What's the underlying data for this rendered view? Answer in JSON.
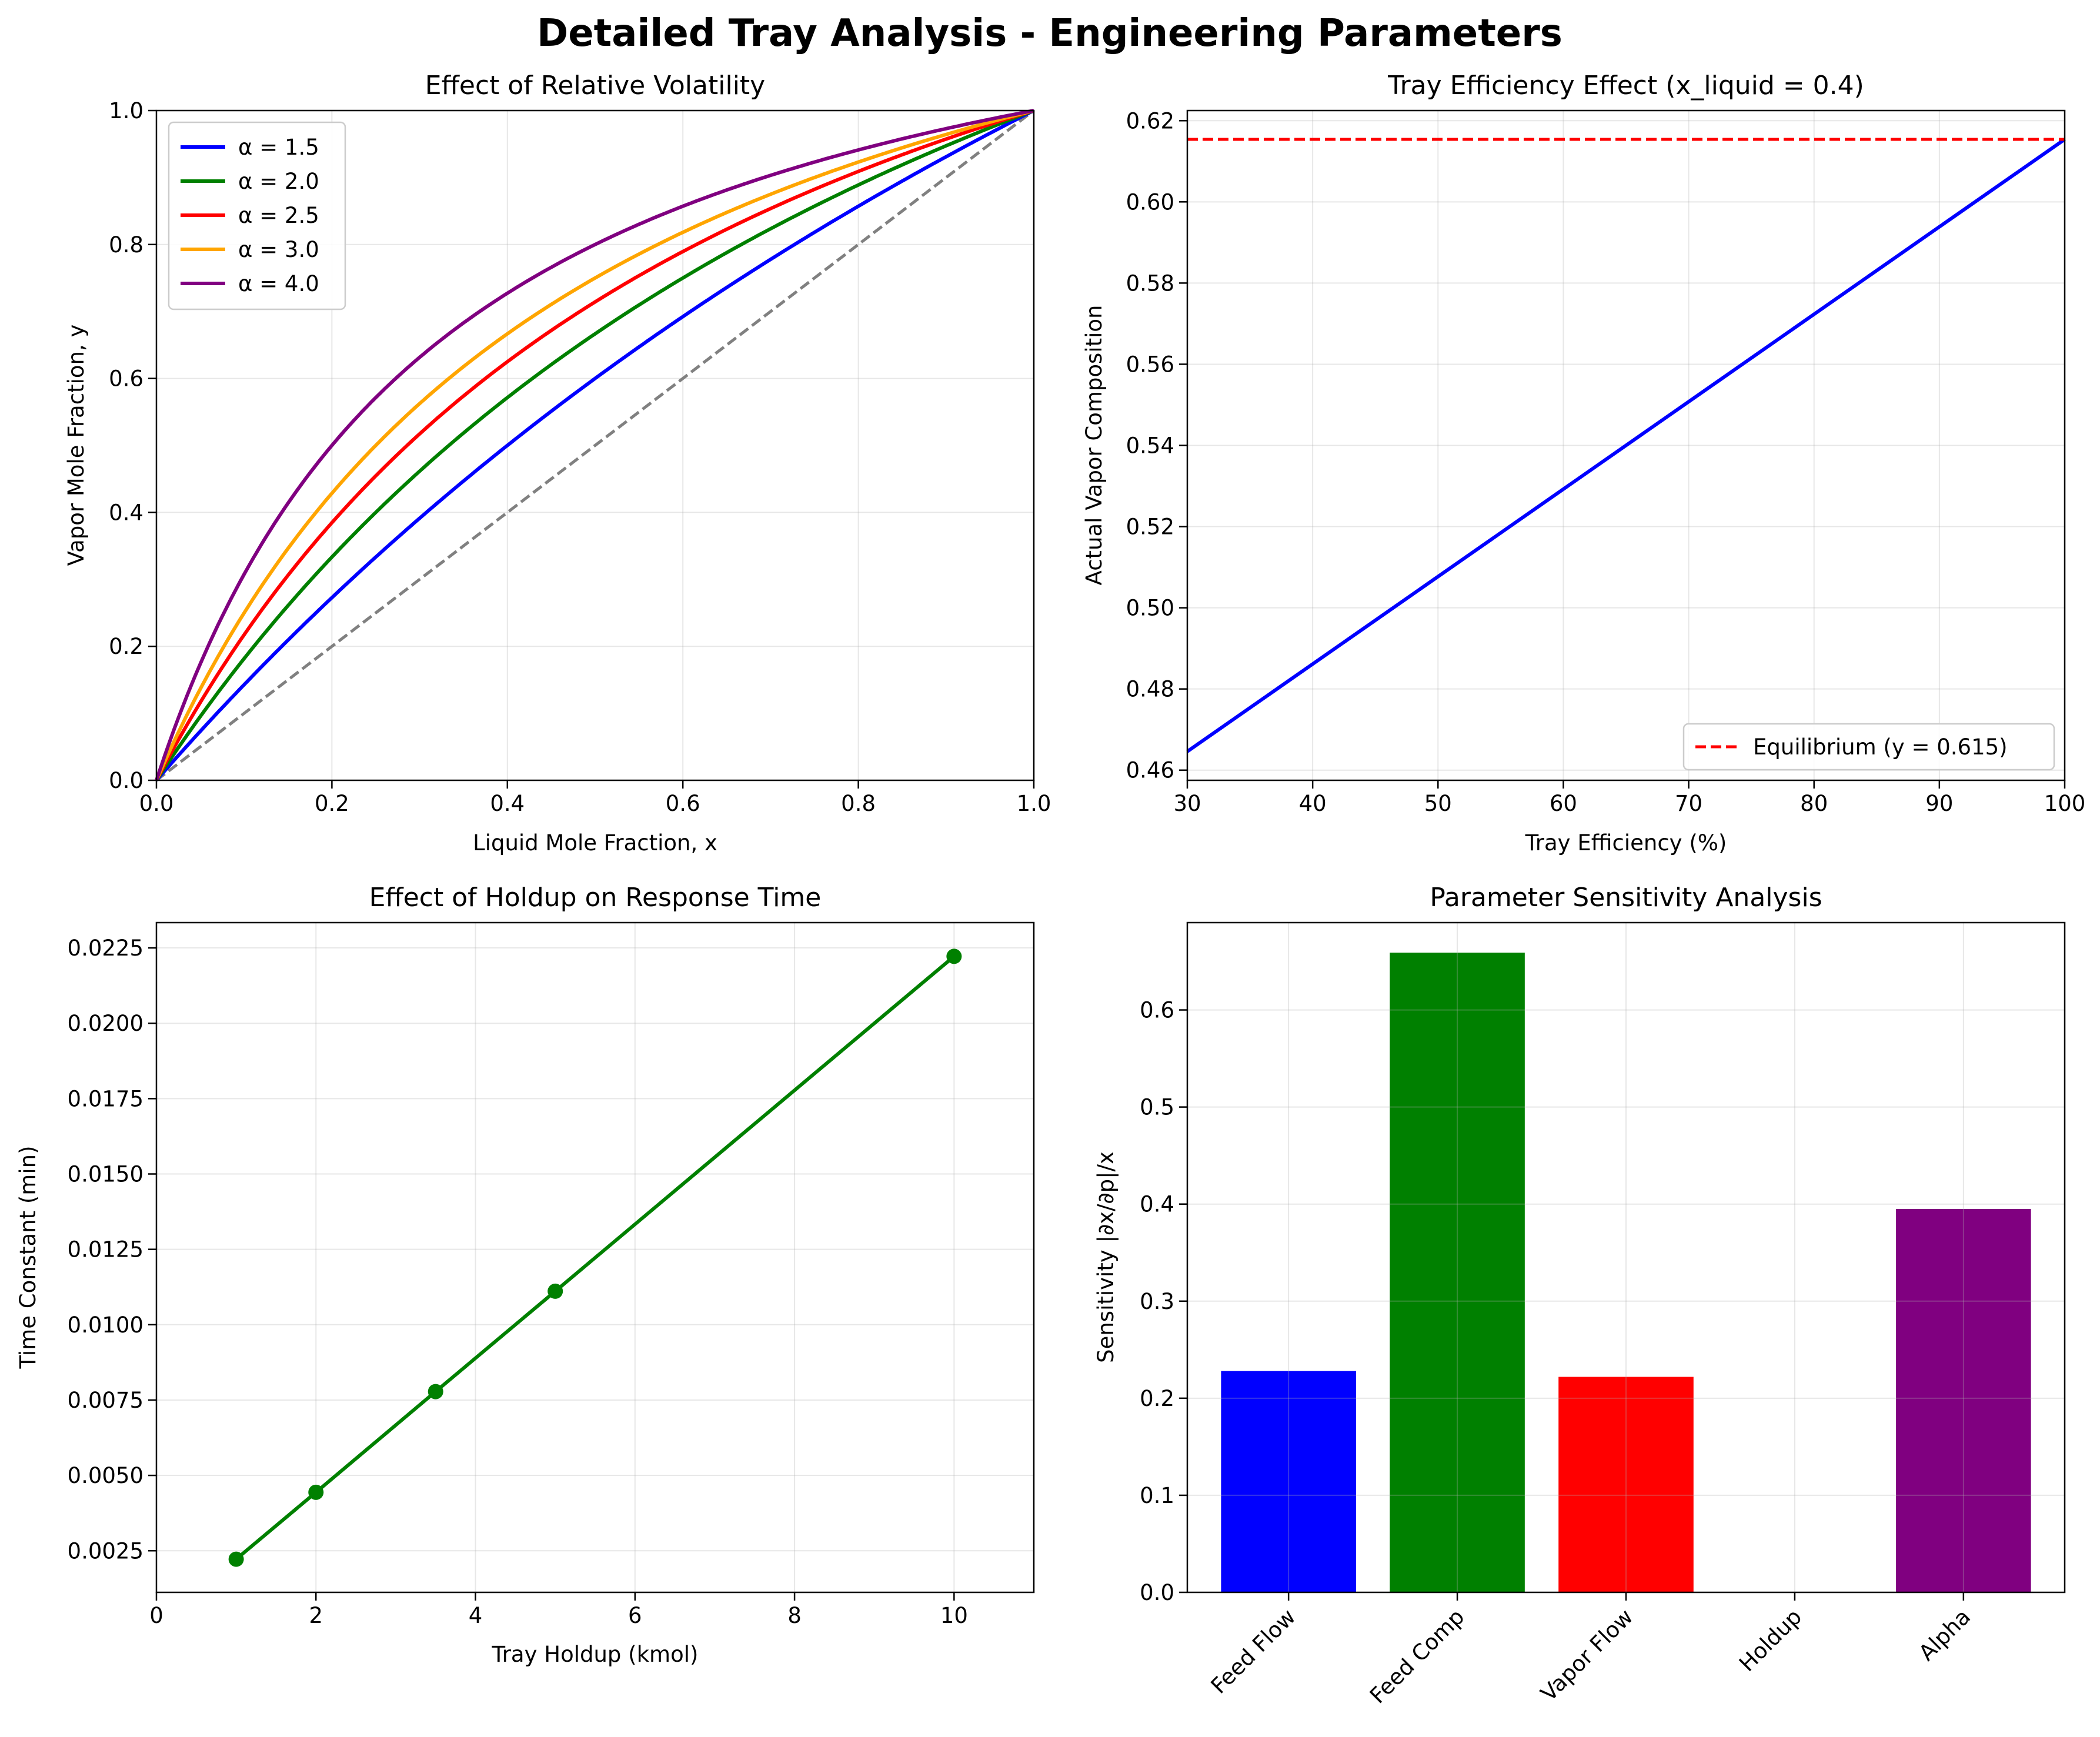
{
  "figure": {
    "title": "Detailed Tray Analysis - Engineering Parameters"
  },
  "chart_data": [
    {
      "type": "line",
      "title": "Effect of Relative Volatility",
      "xlabel": "Liquid Mole Fraction, x",
      "ylabel": "Vapor Mole Fraction, y",
      "xlim": [
        0,
        1
      ],
      "ylim": [
        0,
        1
      ],
      "xticks": [
        "0.0",
        "0.2",
        "0.4",
        "0.6",
        "0.8",
        "1.0"
      ],
      "yticks": [
        "0.0",
        "0.2",
        "0.4",
        "0.6",
        "0.8",
        "1.0"
      ],
      "grid": true,
      "legend_position": "upper-left",
      "equation": "y = alpha*x / (1 + (alpha - 1)*x)",
      "series": [
        {
          "name": "α = 1.5",
          "alpha": 1.5,
          "color": "#0000ff"
        },
        {
          "name": "α = 2.0",
          "alpha": 2.0,
          "color": "#008000"
        },
        {
          "name": "α = 2.5",
          "alpha": 2.5,
          "color": "#ff0000"
        },
        {
          "name": "α = 3.0",
          "alpha": 3.0,
          "color": "#ffa500"
        },
        {
          "name": "α = 4.0",
          "alpha": 4.0,
          "color": "#800080"
        }
      ],
      "diagonal": {
        "x": [
          0,
          1
        ],
        "y": [
          0,
          1
        ],
        "color": "#808080",
        "style": "dashed"
      }
    },
    {
      "type": "line",
      "title": "Tray Efficiency Effect (x_liquid = 0.4)",
      "xlabel": "Tray Efficiency (%)",
      "ylabel": "Actual Vapor Composition",
      "xlim": [
        30,
        100
      ],
      "ylim": [
        0.4575,
        0.6225
      ],
      "xticks": [
        "30",
        "40",
        "50",
        "60",
        "70",
        "80",
        "90",
        "100"
      ],
      "yticks": [
        "0.46",
        "0.48",
        "0.50",
        "0.52",
        "0.54",
        "0.56",
        "0.58",
        "0.60",
        "0.62"
      ],
      "grid": true,
      "legend_position": "lower-right",
      "series": [
        {
          "name": "",
          "x": [
            30,
            100
          ],
          "y": [
            0.4646,
            0.6154
          ],
          "color": "#0000ff"
        }
      ],
      "hline": {
        "name": "Equilibrium (y = 0.615)",
        "y": 0.6154,
        "color": "#ff0000",
        "style": "dashed"
      }
    },
    {
      "type": "line",
      "title": "Effect of Holdup on Response Time",
      "xlabel": "Tray Holdup (kmol)",
      "ylabel": "Time Constant (min)",
      "xlim": [
        0,
        11
      ],
      "ylim": [
        0.00112,
        0.02334
      ],
      "xticks": [
        "0",
        "2",
        "4",
        "6",
        "8",
        "10"
      ],
      "yticks": [
        "0.0025",
        "0.0050",
        "0.0075",
        "0.0100",
        "0.0125",
        "0.0150",
        "0.0175",
        "0.0200",
        "0.0225"
      ],
      "grid": true,
      "series": [
        {
          "name": "",
          "x": [
            1,
            2,
            3.5,
            5,
            10
          ],
          "y": [
            0.00222,
            0.00444,
            0.00778,
            0.01111,
            0.02222
          ],
          "color": "#008000",
          "markers": true
        }
      ]
    },
    {
      "type": "bar",
      "title": "Parameter Sensitivity Analysis",
      "xlabel": "",
      "ylabel": "Sensitivity |∂x/∂p|/x",
      "ylim": [
        0,
        0.69
      ],
      "yticks": [
        "0.0",
        "0.1",
        "0.2",
        "0.3",
        "0.4",
        "0.5",
        "0.6"
      ],
      "grid": true,
      "categories": [
        "Feed Flow",
        "Feed Comp",
        "Vapor Flow",
        "Holdup",
        "Alpha"
      ],
      "values": [
        0.228,
        0.659,
        0.222,
        0.0,
        0.395
      ],
      "colors": [
        "#0000ff",
        "#008000",
        "#ff0000",
        "#ffa500",
        "#800080"
      ]
    }
  ]
}
